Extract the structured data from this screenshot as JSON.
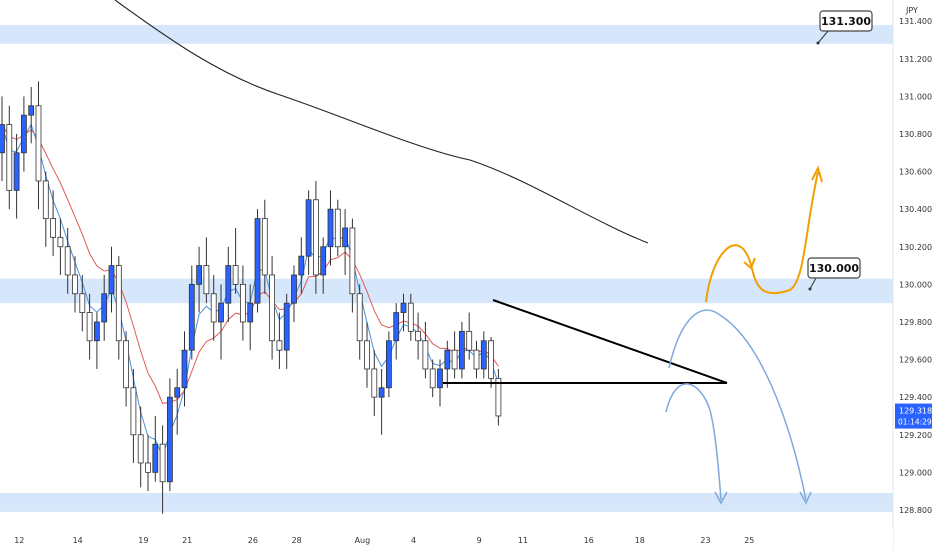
{
  "chart_data": {
    "type": "candlestick",
    "currency": "JPY",
    "ylim": [
      128.75,
      131.5
    ],
    "y_ticks": [
      "131.400",
      "131.200",
      "131.000",
      "130.800",
      "130.600",
      "130.400",
      "130.200",
      "130.000",
      "129.800",
      "129.600",
      "129.400",
      "129.200",
      "129.000",
      "128.800"
    ],
    "x_ticks": [
      {
        "label": "12",
        "idx": 1
      },
      {
        "label": "14",
        "idx": 9
      },
      {
        "label": "19",
        "idx": 18
      },
      {
        "label": "21",
        "idx": 24
      },
      {
        "label": "26",
        "idx": 33
      },
      {
        "label": "28",
        "idx": 39
      },
      {
        "label": "Aug",
        "idx": 48
      },
      {
        "label": "4",
        "idx": 55
      },
      {
        "label": "9",
        "idx": 64
      },
      {
        "label": "11",
        "idx": 70
      },
      {
        "label": "16",
        "idx": 79
      },
      {
        "label": "18",
        "idx": 86
      },
      {
        "label": "23",
        "idx": 95
      },
      {
        "label": "25",
        "idx": 101
      }
    ],
    "zones": [
      {
        "from": 131.28,
        "to": 131.38,
        "label": "131.300"
      },
      {
        "from": 129.9,
        "to": 130.03,
        "label": "130.000"
      },
      {
        "from": 128.79,
        "to": 128.89,
        "label": ""
      }
    ],
    "last_price": "129.318",
    "countdown": "01:14:29",
    "candles": [
      [
        130.7,
        131.0,
        130.55,
        130.85
      ],
      [
        130.85,
        130.95,
        130.4,
        130.5
      ],
      [
        130.5,
        130.8,
        130.35,
        130.7
      ],
      [
        130.7,
        131.0,
        130.6,
        130.9
      ],
      [
        130.9,
        131.05,
        130.75,
        130.95
      ],
      [
        130.95,
        131.08,
        130.4,
        130.55
      ],
      [
        130.55,
        130.6,
        130.2,
        130.35
      ],
      [
        130.35,
        130.5,
        130.15,
        130.25
      ],
      [
        130.25,
        130.35,
        130.05,
        130.2
      ],
      [
        130.2,
        130.3,
        129.95,
        130.05
      ],
      [
        130.05,
        130.15,
        129.85,
        129.95
      ],
      [
        129.95,
        130.05,
        129.75,
        129.85
      ],
      [
        129.85,
        129.95,
        129.6,
        129.7
      ],
      [
        129.7,
        129.85,
        129.55,
        129.8
      ],
      [
        129.8,
        130.05,
        129.7,
        129.95
      ],
      [
        129.95,
        130.2,
        129.85,
        130.1
      ],
      [
        130.1,
        130.15,
        129.6,
        129.7
      ],
      [
        129.7,
        129.75,
        129.35,
        129.45
      ],
      [
        129.45,
        129.55,
        129.05,
        129.2
      ],
      [
        129.2,
        129.35,
        128.92,
        129.05
      ],
      [
        129.05,
        129.2,
        128.9,
        129.0
      ],
      [
        129.0,
        129.3,
        128.95,
        129.15
      ],
      [
        129.15,
        129.25,
        128.78,
        128.95
      ],
      [
        128.95,
        129.5,
        128.9,
        129.4
      ],
      [
        129.4,
        129.55,
        129.2,
        129.45
      ],
      [
        129.45,
        129.75,
        129.35,
        129.65
      ],
      [
        129.65,
        130.1,
        129.6,
        130.0
      ],
      [
        130.0,
        130.2,
        129.85,
        130.1
      ],
      [
        130.1,
        130.25,
        129.9,
        129.95
      ],
      [
        129.95,
        130.05,
        129.7,
        129.8
      ],
      [
        129.8,
        130.0,
        129.6,
        129.9
      ],
      [
        129.9,
        130.2,
        129.8,
        130.1
      ],
      [
        130.1,
        130.3,
        129.95,
        130.0
      ],
      [
        130.0,
        130.1,
        129.7,
        129.8
      ],
      [
        129.8,
        130.0,
        129.65,
        129.9
      ],
      [
        129.9,
        130.4,
        129.85,
        130.35
      ],
      [
        130.35,
        130.45,
        129.95,
        130.05
      ],
      [
        130.05,
        130.15,
        129.6,
        129.7
      ],
      [
        129.7,
        129.85,
        129.55,
        129.65
      ],
      [
        129.65,
        129.95,
        129.55,
        129.9
      ],
      [
        129.9,
        130.1,
        129.8,
        130.05
      ],
      [
        130.05,
        130.25,
        129.95,
        130.15
      ],
      [
        130.15,
        130.5,
        130.05,
        130.45
      ],
      [
        130.45,
        130.55,
        129.95,
        130.05
      ],
      [
        130.05,
        130.25,
        129.95,
        130.2
      ],
      [
        130.2,
        130.5,
        130.1,
        130.4
      ],
      [
        130.4,
        130.45,
        130.15,
        130.2
      ],
      [
        130.2,
        130.4,
        130.05,
        130.3
      ],
      [
        130.3,
        130.35,
        129.85,
        129.95
      ],
      [
        129.95,
        130.0,
        129.6,
        129.7
      ],
      [
        129.7,
        129.8,
        129.45,
        129.55
      ],
      [
        129.55,
        129.65,
        129.3,
        129.4
      ],
      [
        129.4,
        129.55,
        129.2,
        129.45
      ],
      [
        129.45,
        129.75,
        129.4,
        129.7
      ],
      [
        129.7,
        129.9,
        129.6,
        129.85
      ],
      [
        129.85,
        129.95,
        129.75,
        129.9
      ],
      [
        129.9,
        129.95,
        129.7,
        129.75
      ],
      [
        129.75,
        129.85,
        129.6,
        129.7
      ],
      [
        129.7,
        129.8,
        129.5,
        129.55
      ],
      [
        129.55,
        129.6,
        129.4,
        129.45
      ],
      [
        129.45,
        129.6,
        129.35,
        129.55
      ],
      [
        129.55,
        129.7,
        129.45,
        129.65
      ],
      [
        129.65,
        129.75,
        129.5,
        129.55
      ],
      [
        129.55,
        129.8,
        129.5,
        129.75
      ],
      [
        129.75,
        129.85,
        129.6,
        129.65
      ],
      [
        129.65,
        129.7,
        129.5,
        129.55
      ],
      [
        129.55,
        129.75,
        129.5,
        129.7
      ],
      [
        129.7,
        129.72,
        129.45,
        129.5
      ],
      [
        129.5,
        129.55,
        129.25,
        129.3
      ]
    ]
  },
  "ui": {
    "accent": "#2962ff",
    "zone_color": "#d6e6fb",
    "ema_red": "#e05a5a",
    "ema_blue": "#4a90e2",
    "orange": "#f0a000",
    "projection_blue": "#7fa8dc"
  }
}
